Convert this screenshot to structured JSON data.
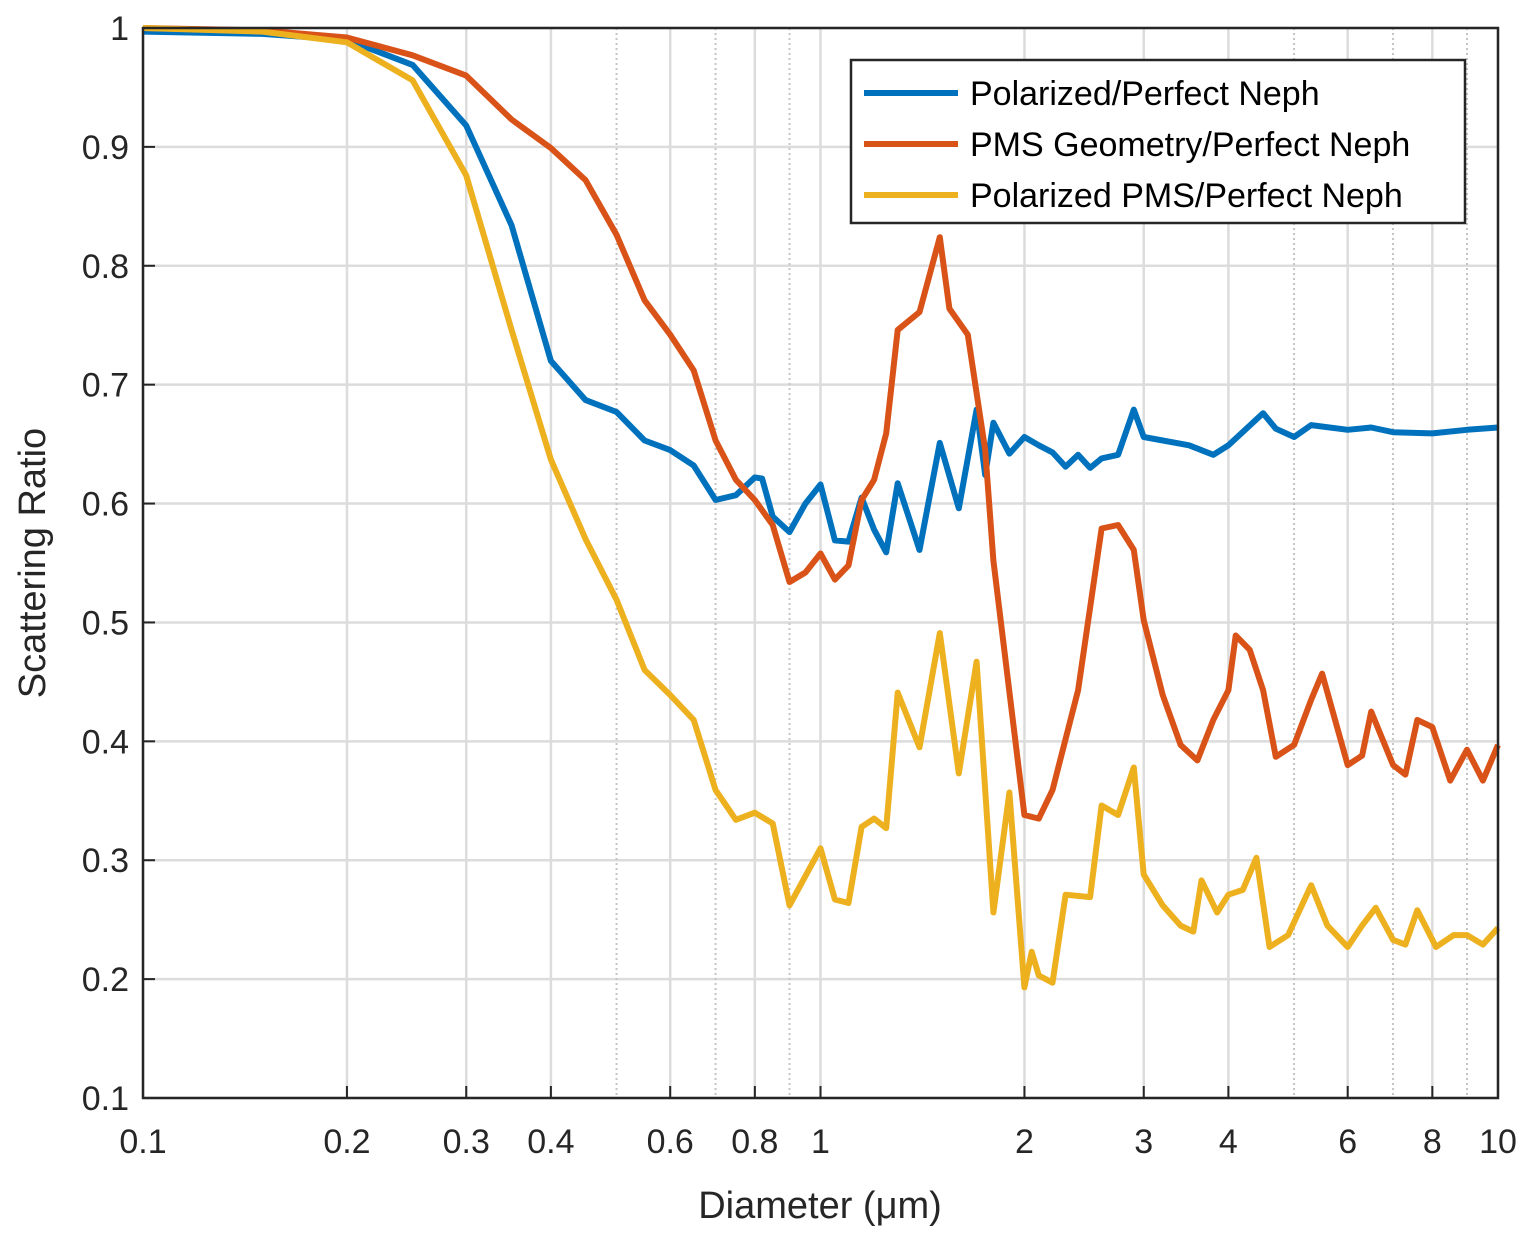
{
  "chart_data": {
    "type": "line",
    "title": "",
    "xlabel": "Diameter (μm)",
    "ylabel": "Scattering Ratio",
    "xscale": "log",
    "xlim": [
      0.1,
      10
    ],
    "ylim": [
      0.1,
      1
    ],
    "grid": true,
    "legend_position": "top-right",
    "x_ticks": [
      0.1,
      0.2,
      0.3,
      0.4,
      0.6,
      0.8,
      1,
      2,
      3,
      4,
      6,
      8,
      10
    ],
    "x_tick_labels": [
      "0.1",
      "0.2",
      "0.3",
      "0.4",
      "0.6",
      "0.8",
      "1",
      "2",
      "3",
      "4",
      "6",
      "8",
      "10"
    ],
    "x_minor_grid": [
      0.5,
      0.7,
      0.9,
      5,
      7,
      9
    ],
    "y_ticks": [
      0.1,
      0.2,
      0.3,
      0.4,
      0.5,
      0.6,
      0.7,
      0.8,
      0.9,
      1
    ],
    "y_tick_labels": [
      "0.1",
      "0.2",
      "0.3",
      "0.4",
      "0.5",
      "0.6",
      "0.7",
      "0.8",
      "0.9",
      "1"
    ],
    "series": [
      {
        "name": "Polarized/Perfect Neph",
        "color": "#0072BD",
        "points": [
          [
            0.1,
            0.997
          ],
          [
            0.15,
            0.995
          ],
          [
            0.2,
            0.99
          ],
          [
            0.25,
            0.969
          ],
          [
            0.3,
            0.918
          ],
          [
            0.35,
            0.834
          ],
          [
            0.4,
            0.72
          ],
          [
            0.45,
            0.687
          ],
          [
            0.5,
            0.677
          ],
          [
            0.55,
            0.653
          ],
          [
            0.6,
            0.645
          ],
          [
            0.65,
            0.632
          ],
          [
            0.7,
            0.603
          ],
          [
            0.75,
            0.607
          ],
          [
            0.8,
            0.622
          ],
          [
            0.82,
            0.621
          ],
          [
            0.85,
            0.589
          ],
          [
            0.9,
            0.576
          ],
          [
            0.95,
            0.6
          ],
          [
            1.0,
            0.616
          ],
          [
            1.05,
            0.569
          ],
          [
            1.1,
            0.568
          ],
          [
            1.15,
            0.605
          ],
          [
            1.2,
            0.578
          ],
          [
            1.25,
            0.559
          ],
          [
            1.3,
            0.617
          ],
          [
            1.4,
            0.561
          ],
          [
            1.5,
            0.651
          ],
          [
            1.6,
            0.596
          ],
          [
            1.7,
            0.679
          ],
          [
            1.75,
            0.624
          ],
          [
            1.8,
            0.668
          ],
          [
            1.9,
            0.642
          ],
          [
            2.0,
            0.656
          ],
          [
            2.1,
            0.649
          ],
          [
            2.2,
            0.643
          ],
          [
            2.3,
            0.631
          ],
          [
            2.4,
            0.641
          ],
          [
            2.5,
            0.63
          ],
          [
            2.6,
            0.638
          ],
          [
            2.75,
            0.641
          ],
          [
            2.9,
            0.679
          ],
          [
            3.0,
            0.656
          ],
          [
            3.5,
            0.649
          ],
          [
            3.8,
            0.641
          ],
          [
            4.0,
            0.649
          ],
          [
            4.5,
            0.676
          ],
          [
            4.7,
            0.663
          ],
          [
            5.0,
            0.656
          ],
          [
            5.3,
            0.666
          ],
          [
            6.0,
            0.662
          ],
          [
            6.5,
            0.664
          ],
          [
            7.0,
            0.66
          ],
          [
            8.0,
            0.659
          ],
          [
            9.0,
            0.662
          ],
          [
            10.0,
            0.664
          ]
        ]
      },
      {
        "name": "PMS Geometry/Perfect Neph",
        "color": "#D95319",
        "points": [
          [
            0.1,
            1.0
          ],
          [
            0.15,
            0.998
          ],
          [
            0.2,
            0.992
          ],
          [
            0.25,
            0.977
          ],
          [
            0.3,
            0.96
          ],
          [
            0.35,
            0.923
          ],
          [
            0.4,
            0.899
          ],
          [
            0.45,
            0.872
          ],
          [
            0.5,
            0.826
          ],
          [
            0.55,
            0.771
          ],
          [
            0.6,
            0.742
          ],
          [
            0.65,
            0.712
          ],
          [
            0.7,
            0.653
          ],
          [
            0.75,
            0.62
          ],
          [
            0.8,
            0.603
          ],
          [
            0.85,
            0.582
          ],
          [
            0.9,
            0.534
          ],
          [
            0.95,
            0.542
          ],
          [
            1.0,
            0.558
          ],
          [
            1.05,
            0.536
          ],
          [
            1.1,
            0.548
          ],
          [
            1.15,
            0.603
          ],
          [
            1.2,
            0.62
          ],
          [
            1.25,
            0.659
          ],
          [
            1.3,
            0.746
          ],
          [
            1.4,
            0.761
          ],
          [
            1.5,
            0.824
          ],
          [
            1.55,
            0.764
          ],
          [
            1.65,
            0.742
          ],
          [
            1.75,
            0.645
          ],
          [
            1.8,
            0.552
          ],
          [
            2.0,
            0.338
          ],
          [
            2.1,
            0.335
          ],
          [
            2.2,
            0.359
          ],
          [
            2.4,
            0.443
          ],
          [
            2.6,
            0.579
          ],
          [
            2.75,
            0.582
          ],
          [
            2.9,
            0.561
          ],
          [
            3.0,
            0.502
          ],
          [
            3.2,
            0.439
          ],
          [
            3.4,
            0.397
          ],
          [
            3.6,
            0.384
          ],
          [
            3.8,
            0.418
          ],
          [
            4.0,
            0.443
          ],
          [
            4.1,
            0.489
          ],
          [
            4.3,
            0.477
          ],
          [
            4.5,
            0.443
          ],
          [
            4.7,
            0.387
          ],
          [
            5.0,
            0.397
          ],
          [
            5.3,
            0.435
          ],
          [
            5.5,
            0.457
          ],
          [
            6.0,
            0.38
          ],
          [
            6.3,
            0.388
          ],
          [
            6.5,
            0.425
          ],
          [
            7.0,
            0.38
          ],
          [
            7.3,
            0.372
          ],
          [
            7.6,
            0.418
          ],
          [
            8.0,
            0.412
          ],
          [
            8.5,
            0.367
          ],
          [
            9.0,
            0.393
          ],
          [
            9.5,
            0.367
          ],
          [
            10.0,
            0.397
          ]
        ]
      },
      {
        "name": "Polarized PMS/Perfect Neph",
        "color": "#EDB120",
        "points": [
          [
            0.1,
            1.0
          ],
          [
            0.15,
            0.997
          ],
          [
            0.2,
            0.988
          ],
          [
            0.25,
            0.956
          ],
          [
            0.3,
            0.876
          ],
          [
            0.35,
            0.746
          ],
          [
            0.4,
            0.637
          ],
          [
            0.45,
            0.57
          ],
          [
            0.5,
            0.519
          ],
          [
            0.55,
            0.46
          ],
          [
            0.6,
            0.439
          ],
          [
            0.65,
            0.418
          ],
          [
            0.7,
            0.359
          ],
          [
            0.75,
            0.334
          ],
          [
            0.8,
            0.34
          ],
          [
            0.85,
            0.331
          ],
          [
            0.9,
            0.262
          ],
          [
            1.0,
            0.31
          ],
          [
            1.05,
            0.267
          ],
          [
            1.1,
            0.264
          ],
          [
            1.15,
            0.328
          ],
          [
            1.2,
            0.335
          ],
          [
            1.25,
            0.327
          ],
          [
            1.3,
            0.441
          ],
          [
            1.4,
            0.395
          ],
          [
            1.5,
            0.491
          ],
          [
            1.6,
            0.373
          ],
          [
            1.7,
            0.467
          ],
          [
            1.8,
            0.256
          ],
          [
            1.9,
            0.357
          ],
          [
            2.0,
            0.193
          ],
          [
            2.05,
            0.223
          ],
          [
            2.1,
            0.203
          ],
          [
            2.2,
            0.197
          ],
          [
            2.3,
            0.271
          ],
          [
            2.5,
            0.269
          ],
          [
            2.6,
            0.346
          ],
          [
            2.75,
            0.338
          ],
          [
            2.9,
            0.378
          ],
          [
            3.0,
            0.288
          ],
          [
            3.2,
            0.262
          ],
          [
            3.4,
            0.245
          ],
          [
            3.55,
            0.24
          ],
          [
            3.65,
            0.283
          ],
          [
            3.85,
            0.256
          ],
          [
            4.0,
            0.271
          ],
          [
            4.2,
            0.275
          ],
          [
            4.4,
            0.302
          ],
          [
            4.6,
            0.227
          ],
          [
            4.9,
            0.237
          ],
          [
            5.3,
            0.279
          ],
          [
            5.6,
            0.245
          ],
          [
            6.0,
            0.227
          ],
          [
            6.3,
            0.245
          ],
          [
            6.6,
            0.26
          ],
          [
            7.0,
            0.233
          ],
          [
            7.3,
            0.229
          ],
          [
            7.6,
            0.258
          ],
          [
            8.1,
            0.227
          ],
          [
            8.6,
            0.237
          ],
          [
            9.0,
            0.237
          ],
          [
            9.5,
            0.229
          ],
          [
            10.0,
            0.243
          ]
        ]
      }
    ]
  }
}
